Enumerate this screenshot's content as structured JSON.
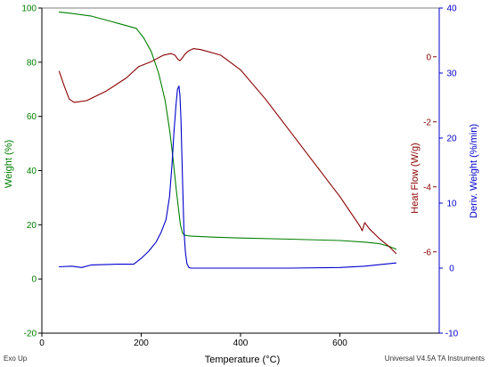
{
  "chart_data": {
    "type": "line",
    "x_axis": {
      "label": "Temperature (°C)",
      "range": [
        0,
        800
      ],
      "ticks": [
        0,
        200,
        400,
        600
      ]
    },
    "y_axes": [
      {
        "id": "weight",
        "label": "Weight (%)",
        "color": "#008000",
        "side": "left",
        "range": [
          -20,
          100
        ],
        "ticks": [
          -20,
          0,
          20,
          40,
          60,
          80,
          100
        ]
      },
      {
        "id": "heatflow",
        "label": "Heat Flow (W/g)",
        "color": "#8b0000",
        "side": "right-inner",
        "range": [
          -8.5,
          1.5
        ],
        "ticks": [
          -6,
          -4,
          -2,
          0
        ]
      },
      {
        "id": "deriv",
        "label": "Deriv. Weight (%/min)",
        "color": "#0000cc",
        "side": "right",
        "range": [
          -10,
          40
        ],
        "ticks": [
          -10,
          0,
          10,
          20,
          30,
          40
        ]
      }
    ],
    "series": [
      {
        "axis": "weight",
        "color": "#008000",
        "x": [
          35,
          60,
          100,
          150,
          190,
          205,
          220,
          235,
          248,
          258,
          265,
          270,
          275,
          279,
          283,
          287,
          292,
          300,
          350,
          400,
          500,
          600,
          650,
          680,
          700,
          713
        ],
        "y": [
          98.5,
          98,
          97,
          94.5,
          92.5,
          89,
          84,
          76,
          66,
          54,
          43,
          34,
          26,
          20,
          17,
          16.2,
          16,
          15.8,
          15.4,
          15.1,
          14.7,
          14.2,
          13.6,
          13,
          12,
          11
        ]
      },
      {
        "axis": "heatflow",
        "color": "#8b0000",
        "x": [
          35,
          45,
          55,
          65,
          90,
          130,
          170,
          195,
          220,
          245,
          260,
          268,
          274,
          278,
          282,
          288,
          295,
          305,
          320,
          360,
          400,
          450,
          500,
          550,
          600,
          640,
          645,
          650,
          660,
          680,
          700,
          713
        ],
        "y": [
          -0.45,
          -0.9,
          -1.3,
          -1.4,
          -1.35,
          -1.05,
          -0.65,
          -0.3,
          -0.15,
          0.05,
          0.1,
          0.05,
          -0.08,
          -0.12,
          -0.05,
          0.08,
          0.18,
          0.25,
          0.22,
          0.05,
          -0.4,
          -1.3,
          -2.3,
          -3.3,
          -4.3,
          -5.2,
          -5.35,
          -5.1,
          -5.3,
          -5.6,
          -5.85,
          -6.05
        ]
      },
      {
        "axis": "deriv",
        "color": "#0000cc",
        "x": [
          35,
          60,
          80,
          100,
          150,
          185,
          200,
          215,
          230,
          240,
          250,
          257,
          262,
          266,
          270,
          273,
          276,
          278,
          280,
          283,
          286,
          289,
          292,
          296,
          300,
          350,
          400,
          500,
          600,
          650,
          713
        ],
        "y": [
          0.2,
          0.3,
          0.1,
          0.5,
          0.6,
          0.6,
          1.5,
          2.6,
          4,
          5.5,
          7.5,
          11,
          16,
          21,
          25,
          27.5,
          28,
          26.5,
          23,
          14,
          6,
          2.5,
          0.7,
          0.1,
          0,
          0,
          0,
          0,
          0.1,
          0.3,
          0.8
        ]
      }
    ],
    "footer_left": "Exo Up",
    "footer_right": "Universal V4.5A TA Instruments"
  }
}
